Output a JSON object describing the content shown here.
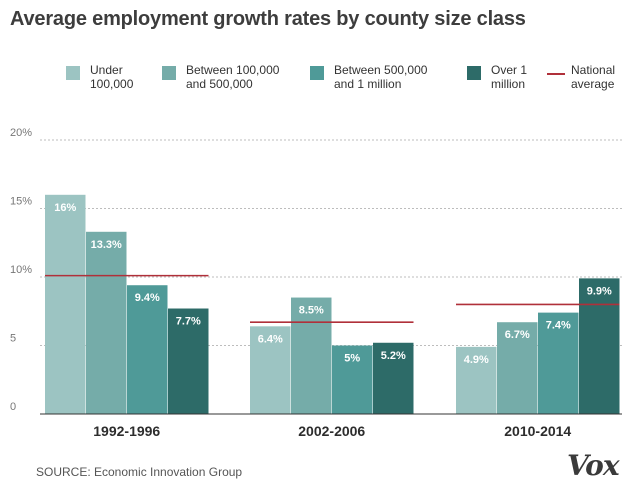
{
  "title": "Average employment growth rates by county size class",
  "legend": [
    {
      "label_line1": "Under",
      "label_line2": "100,000",
      "color": "#9cc4c2"
    },
    {
      "label_line1": "Between 100,000",
      "label_line2": "and 500,000",
      "color": "#75aca9"
    },
    {
      "label_line1": "Between 500,000",
      "label_line2": "and 1 million",
      "color": "#4f9a98"
    },
    {
      "label_line1": "Over 1",
      "label_line2": "million",
      "color": "#2d6b68"
    },
    {
      "label_line1": "National",
      "label_line2": "average",
      "color": "#b0303a"
    }
  ],
  "source": "SOURCE: Economic Innovation Group",
  "logo": "Vox",
  "chart_data": {
    "type": "bar",
    "categories": [
      "1992-1996",
      "2002-2006",
      "2010-2014"
    ],
    "series": [
      {
        "name": "Under 100,000",
        "values": [
          16,
          6.4,
          4.9
        ],
        "labels": [
          "16%",
          "6.4%",
          "4.9%"
        ],
        "color": "#9cc4c2"
      },
      {
        "name": "Between 100,000 and 500,000",
        "values": [
          13.3,
          8.5,
          6.7
        ],
        "labels": [
          "13.3%",
          "8.5%",
          "6.7%"
        ],
        "color": "#75aca9"
      },
      {
        "name": "Between 500,000 and 1 million",
        "values": [
          9.4,
          5,
          7.4
        ],
        "labels": [
          "9.4%",
          "5%",
          "7.4%"
        ],
        "color": "#4f9a98"
      },
      {
        "name": "Over 1 million",
        "values": [
          7.7,
          5.2,
          9.9
        ],
        "labels": [
          "7.7%",
          "5.2%",
          "9.9%"
        ],
        "color": "#2d6b68"
      }
    ],
    "national_average": {
      "name": "National average",
      "values": [
        10.1,
        6.7,
        8
      ],
      "color": "#b0303a"
    },
    "yticks": [
      0,
      5,
      10,
      15,
      20
    ],
    "ytick_labels": [
      "0",
      "5",
      "10%",
      "15%",
      "20%"
    ],
    "ylim": [
      0,
      20
    ],
    "grid": true
  }
}
